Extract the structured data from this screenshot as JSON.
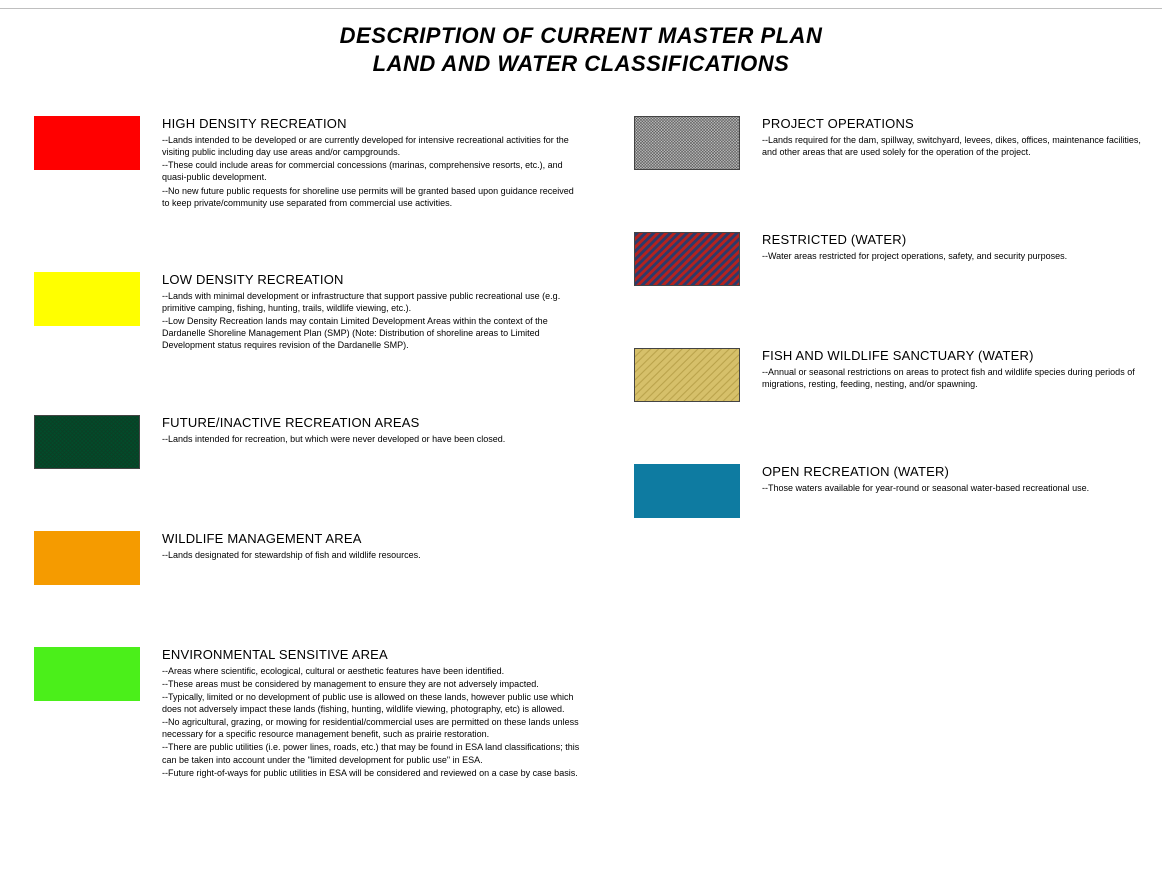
{
  "title": {
    "line1": "DESCRIPTION OF CURRENT MASTER PLAN",
    "line2": "LAND AND WATER CLASSIFICATIONS"
  },
  "left": [
    {
      "name": "high-density-recreation",
      "swatch": {
        "type": "solid",
        "fill": "#ff0000",
        "border": false
      },
      "title": "HIGH DENSITY RECREATION",
      "desc": [
        "--Lands intended to be developed or are currently developed for intensive recreational activities for the visiting public including day use areas and/or campgrounds.",
        "--These could include areas for commercial concessions (marinas, comprehensive resorts, etc.), and quasi-public development.",
        "--No new future public requests for shoreline use permits will be granted based upon guidance received to keep private/community use separated from commercial use activities."
      ]
    },
    {
      "name": "low-density-recreation",
      "swatch": {
        "type": "solid",
        "fill": "#ffff00",
        "border": false
      },
      "title": "LOW DENSITY RECREATION",
      "desc": [
        "--Lands with minimal development or infrastructure that support passive public recreational use (e.g. primitive camping, fishing, hunting, trails, wildlife viewing, etc.).",
        "--Low Density Recreation lands may contain Limited Development Areas within the context of the Dardanelle Shoreline Management Plan (SMP) (Note: Distribution of shoreline areas to Limited Development status requires revision of the Dardanelle SMP)."
      ]
    },
    {
      "name": "future-inactive-recreation",
      "swatch": {
        "type": "crosshatch",
        "fill": "#004d2b",
        "stroke": "#0c3d24",
        "border": true
      },
      "title": "FUTURE/INACTIVE RECREATION AREAS",
      "desc": [
        "--Lands intended for recreation, but which were never developed or have been closed."
      ]
    },
    {
      "name": "wildlife-management-area",
      "swatch": {
        "type": "solid",
        "fill": "#f59b00",
        "border": false
      },
      "title": "WILDLIFE MANAGEMENT AREA",
      "desc": [
        "--Lands designated for stewardship of fish and wildlife resources."
      ]
    },
    {
      "name": "environmental-sensitive-area",
      "swatch": {
        "type": "solid",
        "fill": "#4bef1a",
        "border": false
      },
      "title": "ENVIRONMENTAL SENSITIVE AREA",
      "desc": [
        "--Areas where scientific, ecological, cultural or aesthetic features have been identified.",
        "--These areas must be considered by management to ensure they are not adversely impacted.",
        "--Typically, limited or no development of public use is allowed on these lands, however public use which does not adversely impact these lands (fishing, hunting, wildlife viewing, photography, etc) is allowed.",
        "--No agricultural, grazing, or mowing for residential/commercial uses are permitted on these lands unless necessary for a specific resource management benefit, such as prairie restoration.",
        "--There are public utilities (i.e. power lines, roads, etc.) that may be found in ESA land classifications; this can be taken into account under the \"limited development for public use\" in ESA.",
        "--Future right-of-ways for public utilities in ESA will be considered and reviewed on a case by case basis."
      ]
    }
  ],
  "right": [
    {
      "name": "project-operations",
      "swatch": {
        "type": "crosshatch-gray",
        "fill": "#c8c8c8",
        "stroke": "#464646",
        "border": true
      },
      "title": "PROJECT OPERATIONS",
      "desc": [
        "--Lands required for the dam, spillway, switchyard, levees, dikes, offices, maintenance facilities, and other areas that are used solely for the operation of the project."
      ]
    },
    {
      "name": "restricted-water",
      "swatch": {
        "type": "diag-redblue",
        "fill": "#b5221e",
        "stroke": "#2b3b6b",
        "border": true
      },
      "title": "RESTRICTED (WATER)",
      "desc": [
        "--Water areas restricted for project operations, safety, and security purposes."
      ]
    },
    {
      "name": "fish-wildlife-sanctuary",
      "swatch": {
        "type": "diag-tan",
        "fill": "#d6c06a",
        "stroke": "#b7a048",
        "border": true
      },
      "title": "FISH AND WILDLIFE SANCTUARY (WATER)",
      "desc": [
        "--Annual or seasonal restrictions on areas to protect fish and wildlife species during periods of migrations, resting, feeding, nesting, and/or spawning."
      ]
    },
    {
      "name": "open-recreation-water",
      "swatch": {
        "type": "solid",
        "fill": "#0e7ba1",
        "border": false
      },
      "title": "OPEN RECREATION (WATER)",
      "desc": [
        "--Those waters available for year-round or seasonal water-based recreational use."
      ]
    }
  ]
}
